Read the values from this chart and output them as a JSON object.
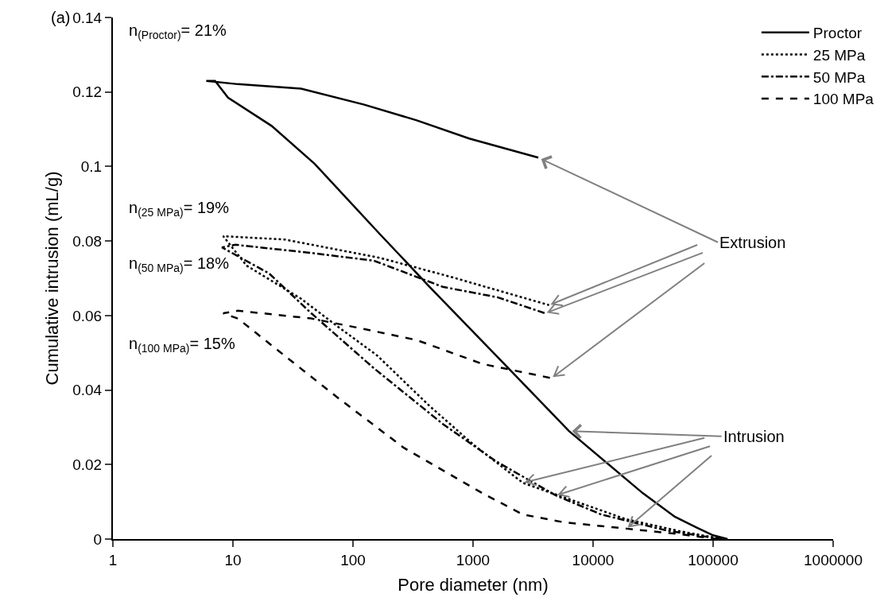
{
  "chart_data": {
    "type": "line",
    "xlabel": "Pore diameter (nm)",
    "ylabel": "Cumulative intrusion (mL/g)",
    "log": "x",
    "xlim": [
      1,
      1000000
    ],
    "xticks": [
      1,
      10,
      100,
      1000,
      10000,
      100000,
      1000000
    ],
    "ylim": [
      0,
      0.14
    ],
    "yticks": [
      0,
      0.02,
      0.04,
      0.06,
      0.08,
      0.1,
      0.12,
      0.14
    ],
    "grid": false,
    "legend": "top right",
    "marker": "none",
    "series": [
      {
        "name": "Proctor",
        "color": "#000000",
        "line_style": "solid",
        "x": [
          132000,
          100000,
          72000,
          48000,
          26000,
          6300,
          1900,
          435,
          167,
          48,
          21,
          9.1,
          7.1,
          6,
          11,
          37,
          124,
          340,
          930,
          3500
        ],
        "values": [
          0,
          0.001,
          0.0032,
          0.006,
          0.0123,
          0.029,
          0.0464,
          0.0677,
          0.0819,
          0.1007,
          0.1109,
          0.1185,
          0.123,
          0.123,
          0.1221,
          0.1209,
          0.1166,
          0.1124,
          0.1075,
          0.1024
        ]
      },
      {
        "name": "25 MPa",
        "color": "#000000",
        "line_style": "dotted",
        "x": [
          120000,
          53000,
          19000,
          7000,
          2600,
          1030,
          435,
          160,
          75,
          37,
          13,
          8.3,
          27,
          167,
          650,
          4300
        ],
        "values": [
          0,
          0.0021,
          0.0053,
          0.0102,
          0.0151,
          0.0251,
          0.0357,
          0.0492,
          0.057,
          0.0645,
          0.0734,
          0.0813,
          0.0804,
          0.0755,
          0.0704,
          0.0628
        ]
      },
      {
        "name": "50 MPa",
        "color": "#000000",
        "line_style": "dashdot",
        "x": [
          120000,
          97000,
          41000,
          11700,
          4900,
          1550,
          560,
          150,
          45,
          20,
          8.1,
          10.5,
          45,
          150,
          560,
          1600,
          4000
        ],
        "values": [
          0,
          0.0004,
          0.0023,
          0.0066,
          0.0117,
          0.0209,
          0.0309,
          0.0458,
          0.0606,
          0.0713,
          0.0783,
          0.079,
          0.0768,
          0.0747,
          0.0677,
          0.0649,
          0.0606
        ]
      },
      {
        "name": "100 MPa",
        "color": "#000000",
        "line_style": "dashed",
        "x": [
          110000,
          97000,
          53000,
          19000,
          5700,
          2600,
          1200,
          265,
          167,
          75,
          27,
          11,
          8.3,
          11,
          45,
          123,
          340,
          1200,
          4500
        ],
        "values": [
          0,
          0.0002,
          0.0013,
          0.0028,
          0.0045,
          0.0066,
          0.0123,
          0.0245,
          0.0294,
          0.0379,
          0.0492,
          0.0592,
          0.0606,
          0.0613,
          0.0592,
          0.0564,
          0.0534,
          0.047,
          0.0432
        ]
      }
    ],
    "annotations": [
      "(a)",
      "n$_{(Proctor)}$= 21%",
      "n$_{(25 MPa)}$= 19%",
      "n$_{(50 MPa)}$= 18%",
      "n$_{(100 MPa)}$= 15%",
      {
        "text": "Extrusion",
        "x": 3500,
        "y": 0.1024
      },
      {
        "text": "Intrusion",
        "x": 6300,
        "y": 0.029
      }
    ]
  }
}
